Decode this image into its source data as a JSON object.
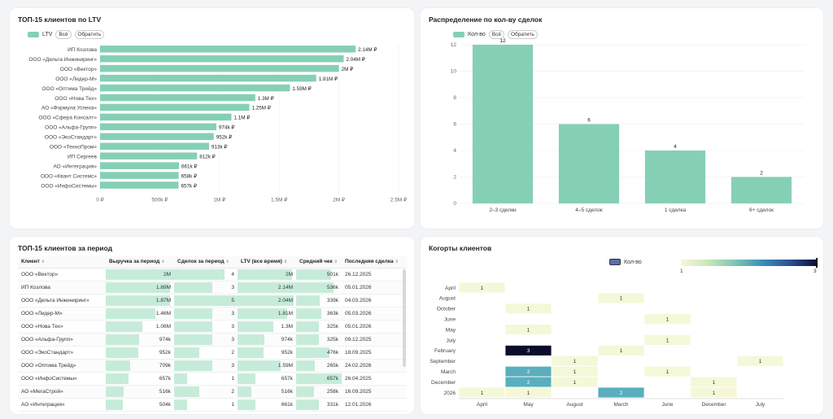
{
  "colors": {
    "accent": "#85d0b4",
    "cell_bar": "#c6ecd9",
    "cohort_low": "#f4f8d8",
    "cohort_mid": "#5aaebd",
    "cohort_high": "#0c0c2c"
  },
  "top_ltv": {
    "title": "ТОП-15 клиентов по LTV",
    "legend_label": "LTV",
    "btn_all": "Всё",
    "btn_invert": "Обратить",
    "chart_data": {
      "type": "bar",
      "orientation": "horizontal",
      "categories": [
        "ИП Козлова",
        "ООО «Дельта Инжиниринг»",
        "ООО «Вектор»",
        "ООО «Лидер-М»",
        "ООО «Оптима Трейд»",
        "ООО «Нова Тех»",
        "АО «Формула Успеха»",
        "ООО «Сфера Консалт»",
        "ООО «Альфа-Групп»",
        "ООО «ЭкоСтандарт»",
        "ООО «ТехноПром»",
        "ИП Сергеев",
        "АО «Интеграция»",
        "ООО «Квант Системс»",
        "ООО «ИнфоСистемы»"
      ],
      "values": [
        2140000,
        2040000,
        2000000,
        1810000,
        1590000,
        1300000,
        1250000,
        1100000,
        974000,
        952000,
        913000,
        812000,
        661000,
        658000,
        657000
      ],
      "value_labels": [
        "2.14M ₽",
        "2.04M ₽",
        "2M ₽",
        "1.81M ₽",
        "1.59M ₽",
        "1.3M ₽",
        "1.25M ₽",
        "1.1M ₽",
        "974k ₽",
        "952k ₽",
        "913k ₽",
        "812k ₽",
        "661k ₽",
        "658k ₽",
        "657k ₽"
      ],
      "xlim": [
        0,
        2500000
      ],
      "x_ticks": [
        "0 ₽",
        "500k ₽",
        "1M ₽",
        "1.5M ₽",
        "2M ₽",
        "2.5M ₽"
      ]
    }
  },
  "deals_dist": {
    "title": "Распределение по кол-ву сделок",
    "legend_label": "Кол-во",
    "btn_all": "Всё",
    "btn_invert": "Обратить",
    "chart_data": {
      "type": "bar",
      "categories": [
        "2–3 сделки",
        "4–5 сделок",
        "1 сделка",
        "6+ сделок"
      ],
      "values": [
        12,
        6,
        4,
        2
      ],
      "ylim": [
        0,
        12
      ],
      "y_ticks": [
        "0",
        "2",
        "4",
        "6",
        "8",
        "10",
        "12"
      ]
    }
  },
  "period_table": {
    "title": "ТОП-15 клиентов за период",
    "sort_glyph": "⇕",
    "columns": [
      "Клиент",
      "Выручка за период",
      "Сделок за период",
      "LTV (все время)",
      "Средний чек",
      "Последняя сделка"
    ],
    "rows": [
      {
        "client": "ООО «Вектор»",
        "revenue": "2M",
        "deals": "4",
        "ltv": "2M",
        "avg": "501k",
        "last": "26.12.2025",
        "revenue_n": 2000000,
        "deals_n": 4,
        "ltv_n": 2000000,
        "avg_n": 501000
      },
      {
        "client": "ИП Козлова",
        "revenue": "1.89M",
        "deals": "3",
        "ltv": "2.14M",
        "avg": "536k",
        "last": "05.01.2026",
        "revenue_n": 1890000,
        "deals_n": 3,
        "ltv_n": 2140000,
        "avg_n": 536000
      },
      {
        "client": "ООО «Дельта Инжиниринг»",
        "revenue": "1.87M",
        "deals": "5",
        "ltv": "2.04M",
        "avg": "339k",
        "last": "04.03.2026",
        "revenue_n": 1870000,
        "deals_n": 5,
        "ltv_n": 2040000,
        "avg_n": 339000
      },
      {
        "client": "ООО «Лидер-М»",
        "revenue": "1.46M",
        "deals": "3",
        "ltv": "1.81M",
        "avg": "363k",
        "last": "05.03.2026",
        "revenue_n": 1460000,
        "deals_n": 3,
        "ltv_n": 1810000,
        "avg_n": 363000
      },
      {
        "client": "ООО «Нова Тех»",
        "revenue": "1.06M",
        "deals": "3",
        "ltv": "1.3M",
        "avg": "325k",
        "last": "05.01.2026",
        "revenue_n": 1060000,
        "deals_n": 3,
        "ltv_n": 1300000,
        "avg_n": 325000
      },
      {
        "client": "ООО «Альфа-Групп»",
        "revenue": "974k",
        "deals": "3",
        "ltv": "974k",
        "avg": "325k",
        "last": "09.12.2025",
        "revenue_n": 974000,
        "deals_n": 3,
        "ltv_n": 974000,
        "avg_n": 325000
      },
      {
        "client": "ООО «ЭкоСтандарт»",
        "revenue": "952k",
        "deals": "2",
        "ltv": "952k",
        "avg": "476k",
        "last": "18.09.2025",
        "revenue_n": 952000,
        "deals_n": 2,
        "ltv_n": 952000,
        "avg_n": 476000
      },
      {
        "client": "ООО «Оптима Трейд»",
        "revenue": "709k",
        "deals": "3",
        "ltv": "1.59M",
        "avg": "265k",
        "last": "24.02.2026",
        "revenue_n": 709000,
        "deals_n": 3,
        "ltv_n": 1590000,
        "avg_n": 265000
      },
      {
        "client": "ООО «ИнфоСистемы»",
        "revenue": "657k",
        "deals": "1",
        "ltv": "657k",
        "avg": "657k",
        "last": "26.04.2025",
        "revenue_n": 657000,
        "deals_n": 1,
        "ltv_n": 657000,
        "avg_n": 657000
      },
      {
        "client": "АО «МегаСтрой»",
        "revenue": "516k",
        "deals": "2",
        "ltv": "516k",
        "avg": "258k",
        "last": "16.09.2025",
        "revenue_n": 516000,
        "deals_n": 2,
        "ltv_n": 516000,
        "avg_n": 258000
      },
      {
        "client": "АО «Интеграция»",
        "revenue": "504k",
        "deals": "1",
        "ltv": "661k",
        "avg": "331k",
        "last": "12.01.2026",
        "revenue_n": 504000,
        "deals_n": 1,
        "ltv_n": 661000,
        "avg_n": 331000
      }
    ]
  },
  "cohorts": {
    "title": "Когорты клиентов",
    "legend_label": "Кол-во",
    "scale_min": "1",
    "scale_max": "3",
    "chart_data": {
      "type": "heatmap",
      "x_categories": [
        "April",
        "May",
        "August",
        "March",
        "June",
        "December",
        "July"
      ],
      "y_categories": [
        "April",
        "August",
        "October",
        "June",
        "May",
        "July",
        "February",
        "September",
        "March",
        "December",
        "2026"
      ],
      "cells": [
        {
          "y": "April",
          "x": "April",
          "v": 1
        },
        {
          "y": "August",
          "x": "March",
          "v": 1
        },
        {
          "y": "October",
          "x": "May",
          "v": 1
        },
        {
          "y": "June",
          "x": "June",
          "v": 1
        },
        {
          "y": "May",
          "x": "May",
          "v": 1
        },
        {
          "y": "July",
          "x": "June",
          "v": 1
        },
        {
          "y": "February",
          "x": "May",
          "v": 3
        },
        {
          "y": "February",
          "x": "March",
          "v": 1
        },
        {
          "y": "September",
          "x": "August",
          "v": 1
        },
        {
          "y": "September",
          "x": "July",
          "v": 1
        },
        {
          "y": "March",
          "x": "May",
          "v": 2
        },
        {
          "y": "March",
          "x": "August",
          "v": 1
        },
        {
          "y": "March",
          "x": "June",
          "v": 1
        },
        {
          "y": "December",
          "x": "May",
          "v": 2
        },
        {
          "y": "December",
          "x": "August",
          "v": 1
        },
        {
          "y": "December",
          "x": "December",
          "v": 1
        },
        {
          "y": "2026",
          "x": "April",
          "v": 1
        },
        {
          "y": "2026",
          "x": "May",
          "v": 1
        },
        {
          "y": "2026",
          "x": "March",
          "v": 2
        },
        {
          "y": "2026",
          "x": "December",
          "v": 1
        }
      ],
      "vrange": [
        1,
        3
      ]
    }
  }
}
